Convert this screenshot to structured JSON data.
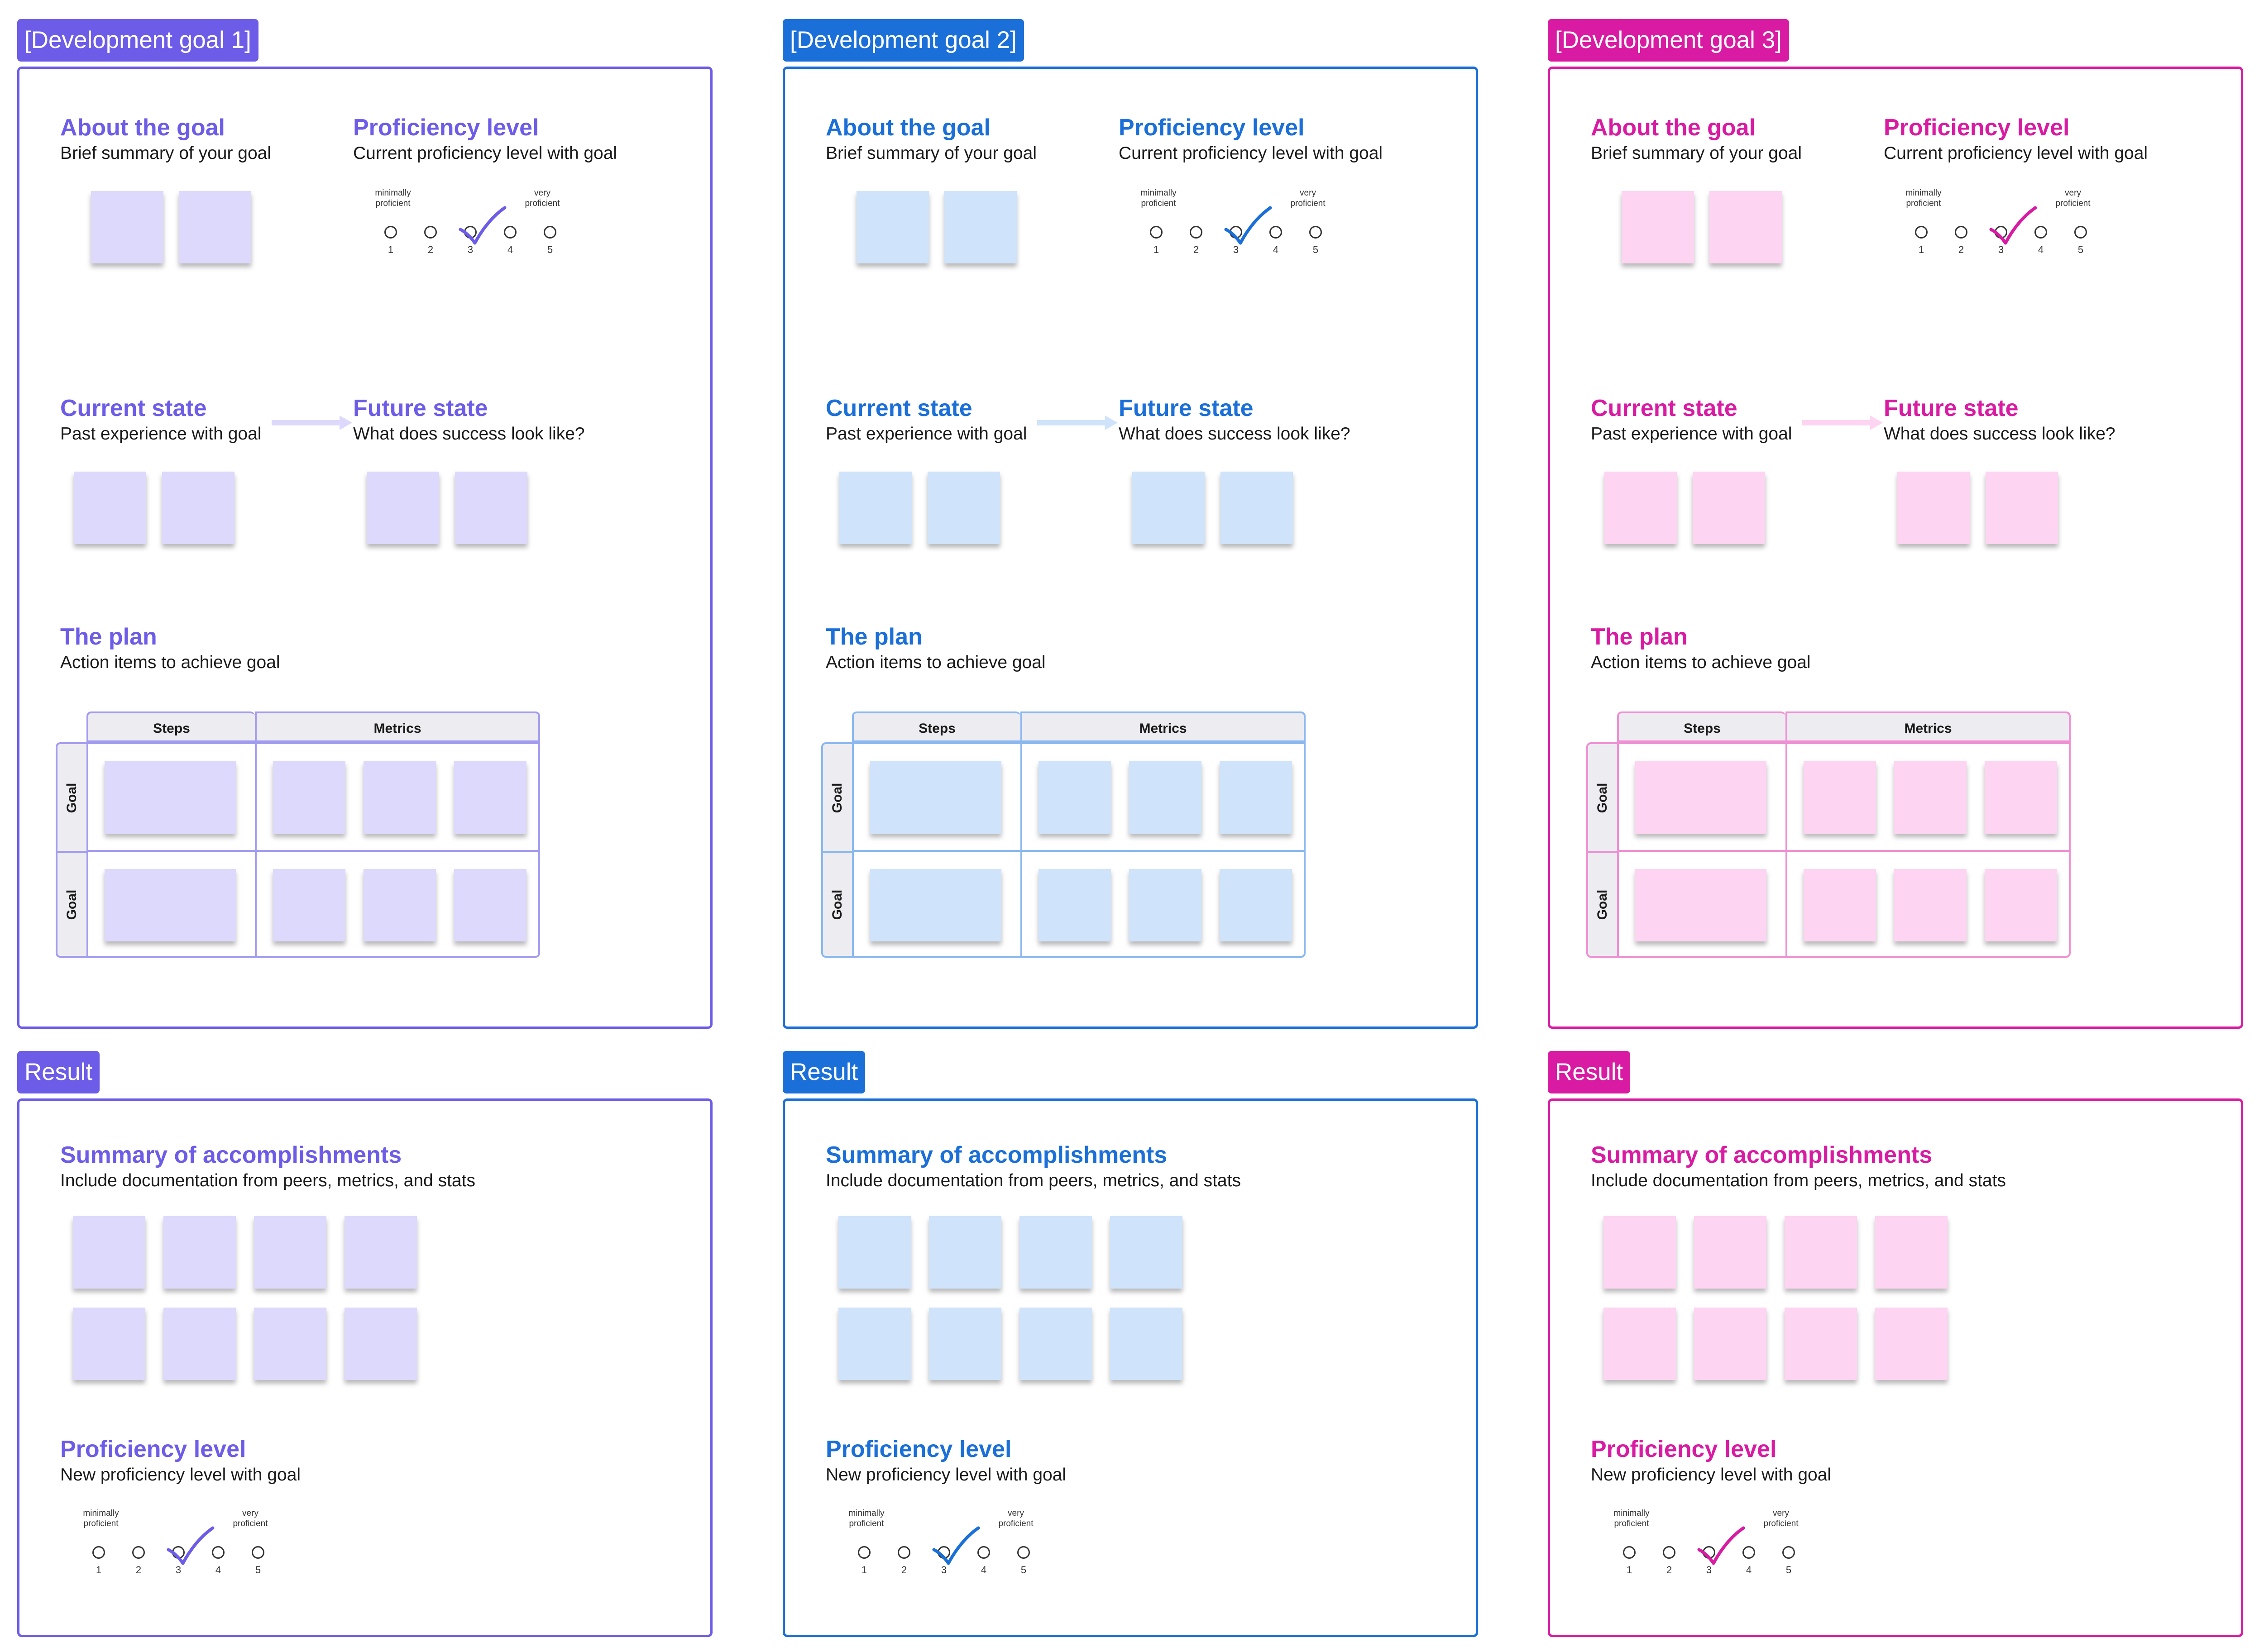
{
  "theme": {
    "col1": {
      "accent": "#6c5ce7",
      "note": "#dcd9fc",
      "light": "#dcd9fc",
      "tableline": "#a29cf0"
    },
    "col2": {
      "accent": "#1a6fd8",
      "note": "#cfe3fb",
      "light": "#cfe3fb",
      "tableline": "#8ab8ef"
    },
    "col3": {
      "accent": "#d81ba2",
      "note": "#fdd4f1",
      "light": "#fdd4f1",
      "tableline": "#ef8fd4"
    }
  },
  "columns": [
    {
      "goal_tag": "[Development goal 1]",
      "about": {
        "title": "About the goal",
        "subtitle": "Brief summary of your goal"
      },
      "proficiency": {
        "title": "Proficiency level",
        "subtitle": "Current proficiency level with goal",
        "min_label": "minimally\nproficient",
        "max_label": "very\nproficient",
        "scale": [
          "1",
          "2",
          "3",
          "4",
          "5"
        ],
        "selected": 3
      },
      "current": {
        "title": "Current state",
        "subtitle": "Past experience with goal"
      },
      "future": {
        "title": "Future state",
        "subtitle": "What does success look like?"
      },
      "plan": {
        "title": "The plan",
        "subtitle": "Action items to achieve goal",
        "col_steps": "Steps",
        "col_metrics": "Metrics",
        "rows": [
          "Goal",
          "Goal"
        ]
      },
      "result_tag": "Result",
      "summary": {
        "title": "Summary of accomplishments",
        "subtitle": "Include documentation from peers, metrics, and stats"
      },
      "new_proficiency": {
        "title": "Proficiency level",
        "subtitle": "New proficiency level with goal",
        "min_label": "minimally\nproficient",
        "max_label": "very\nproficient",
        "scale": [
          "1",
          "2",
          "3",
          "4",
          "5"
        ],
        "selected": 3
      }
    },
    {
      "goal_tag": "[Development goal 2]",
      "about": {
        "title": "About the goal",
        "subtitle": "Brief summary of your goal"
      },
      "proficiency": {
        "title": "Proficiency level",
        "subtitle": "Current proficiency level with goal",
        "min_label": "minimally\nproficient",
        "max_label": "very\nproficient",
        "scale": [
          "1",
          "2",
          "3",
          "4",
          "5"
        ],
        "selected": 3
      },
      "current": {
        "title": "Current state",
        "subtitle": "Past experience with goal"
      },
      "future": {
        "title": "Future state",
        "subtitle": "What does success look like?"
      },
      "plan": {
        "title": "The plan",
        "subtitle": "Action items to achieve goal",
        "col_steps": "Steps",
        "col_metrics": "Metrics",
        "rows": [
          "Goal",
          "Goal"
        ]
      },
      "result_tag": "Result",
      "summary": {
        "title": "Summary of accomplishments",
        "subtitle": "Include documentation from peers, metrics, and stats"
      },
      "new_proficiency": {
        "title": "Proficiency level",
        "subtitle": "New proficiency level with goal",
        "min_label": "minimally\nproficient",
        "max_label": "very\nproficient",
        "scale": [
          "1",
          "2",
          "3",
          "4",
          "5"
        ],
        "selected": 3
      }
    },
    {
      "goal_tag": "[Development goal 3]",
      "about": {
        "title": "About the goal",
        "subtitle": "Brief summary of your goal"
      },
      "proficiency": {
        "title": "Proficiency level",
        "subtitle": "Current proficiency level with goal",
        "min_label": "minimally\nproficient",
        "max_label": "very\nproficient",
        "scale": [
          "1",
          "2",
          "3",
          "4",
          "5"
        ],
        "selected": 3
      },
      "current": {
        "title": "Current state",
        "subtitle": "Past experience with goal"
      },
      "future": {
        "title": "Future state",
        "subtitle": "What does success look like?"
      },
      "plan": {
        "title": "The plan",
        "subtitle": "Action items to achieve goal",
        "col_steps": "Steps",
        "col_metrics": "Metrics",
        "rows": [
          "Goal",
          "Goal"
        ]
      },
      "result_tag": "Result",
      "summary": {
        "title": "Summary of accomplishments",
        "subtitle": "Include documentation from peers, metrics, and stats"
      },
      "new_proficiency": {
        "title": "Proficiency level",
        "subtitle": "New proficiency level with goal",
        "min_label": "minimally\nproficient",
        "max_label": "very\nproficient",
        "scale": [
          "1",
          "2",
          "3",
          "4",
          "5"
        ],
        "selected": 3
      }
    }
  ]
}
